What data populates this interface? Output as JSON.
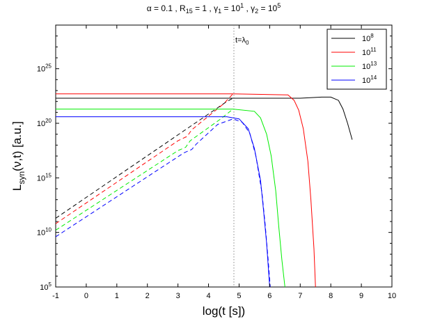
{
  "chart_data": {
    "type": "line",
    "title": "α = 0.1 , R₁₅ = 1 , γ₁ = 10¹ , γ₂ = 10⁵",
    "title_parts": [
      {
        "t": "α = 0.1 , R",
        "s": "15",
        "u": ""
      },
      {
        "t": " = 1 , γ",
        "s": "1",
        "u": ""
      },
      {
        "t": " = 10",
        "s": "",
        "u": "1"
      },
      {
        "t": " , γ",
        "s": "2",
        "u": ""
      },
      {
        "t": " = 10",
        "s": "",
        "u": "5"
      }
    ],
    "xlabel": "log(t [s])",
    "ylabel": {
      "main": "L",
      "sub": "syn",
      "rest": "(ν,t) [a.u.]"
    },
    "xlim": [
      -1,
      10
    ],
    "ylim_exponent": [
      5,
      29
    ],
    "log_y": true,
    "x_ticks": [
      -1,
      0,
      1,
      2,
      3,
      4,
      5,
      6,
      7,
      8,
      9,
      10
    ],
    "y_ticks": [
      {
        "base": "10",
        "exp": "5",
        "value": 5
      },
      {
        "base": "10",
        "exp": "10",
        "value": 10
      },
      {
        "base": "10",
        "exp": "15",
        "value": 15
      },
      {
        "base": "10",
        "exp": "20",
        "value": 20
      },
      {
        "base": "10",
        "exp": "25",
        "value": 25
      }
    ],
    "grid": false,
    "legend_position": "top-right",
    "vline": {
      "x": 4.83,
      "label": {
        "base": "t=λ",
        "sub": "0"
      },
      "color": "#888888"
    },
    "series": [
      {
        "name": "10⁸",
        "legend_base": "10",
        "legend_exp": "8",
        "color": "#000000",
        "solid": [
          [
            -1,
            22.3
          ],
          [
            4.8,
            22.3
          ],
          [
            7.0,
            22.3
          ],
          [
            7.7,
            22.4
          ],
          [
            8.0,
            22.4
          ],
          [
            8.25,
            22.1
          ],
          [
            8.4,
            21.3
          ],
          [
            8.55,
            20.0
          ],
          [
            8.7,
            18.5
          ]
        ],
        "dashed": [
          [
            -1,
            11.3
          ],
          [
            4.6,
            22.0
          ],
          [
            4.8,
            22.3
          ]
        ]
      },
      {
        "name": "10¹¹",
        "legend_base": "10",
        "legend_exp": "11",
        "color": "#ff0000",
        "solid": [
          [
            -1,
            22.7
          ],
          [
            4.8,
            22.7
          ],
          [
            6.6,
            22.6
          ],
          [
            6.8,
            22.1
          ],
          [
            6.95,
            21.2
          ],
          [
            7.1,
            19.5
          ],
          [
            7.25,
            16.5
          ],
          [
            7.35,
            13.0
          ],
          [
            7.45,
            8.5
          ],
          [
            7.5,
            5.0
          ]
        ],
        "dashed": [
          [
            -1,
            10.8
          ],
          [
            3.0,
            18.4
          ],
          [
            3.3,
            18.8
          ],
          [
            3.45,
            19.4
          ],
          [
            4.5,
            21.8
          ],
          [
            4.8,
            22.7
          ]
        ]
      },
      {
        "name": "10¹³",
        "legend_base": "10",
        "legend_exp": "13",
        "color": "#00ee00",
        "solid": [
          [
            -1,
            21.3
          ],
          [
            4.8,
            21.3
          ],
          [
            5.5,
            21.1
          ],
          [
            5.7,
            20.5
          ],
          [
            5.9,
            19.0
          ],
          [
            6.05,
            17.0
          ],
          [
            6.2,
            13.8
          ],
          [
            6.3,
            10.5
          ],
          [
            6.4,
            7.5
          ],
          [
            6.5,
            5.0
          ]
        ],
        "dashed": [
          [
            -1,
            10.2
          ],
          [
            3.0,
            17.5
          ],
          [
            3.25,
            17.8
          ],
          [
            3.4,
            18.4
          ],
          [
            4.4,
            20.4
          ],
          [
            4.8,
            21.3
          ]
        ]
      },
      {
        "name": "10¹⁴",
        "legend_base": "10",
        "legend_exp": "14",
        "color": "#0000ff",
        "solid": [
          [
            -1,
            20.6
          ],
          [
            4.6,
            20.6
          ],
          [
            5.0,
            20.4
          ],
          [
            5.3,
            19.5
          ],
          [
            5.5,
            17.7
          ],
          [
            5.7,
            14.8
          ],
          [
            5.8,
            12.0
          ],
          [
            5.9,
            9.0
          ],
          [
            6.0,
            5.0
          ]
        ],
        "dashed": [
          [
            -1,
            9.6
          ],
          [
            3.2,
            17.3
          ],
          [
            3.45,
            17.6
          ],
          [
            3.6,
            18.1
          ],
          [
            4.3,
            19.9
          ],
          [
            4.8,
            20.4
          ],
          [
            5.1,
            20.1
          ],
          [
            5.35,
            19.1
          ],
          [
            5.55,
            17.0
          ],
          [
            5.75,
            13.6
          ],
          [
            5.85,
            10.8
          ],
          [
            5.95,
            7.5
          ],
          [
            6.02,
            5.0
          ]
        ]
      }
    ]
  }
}
